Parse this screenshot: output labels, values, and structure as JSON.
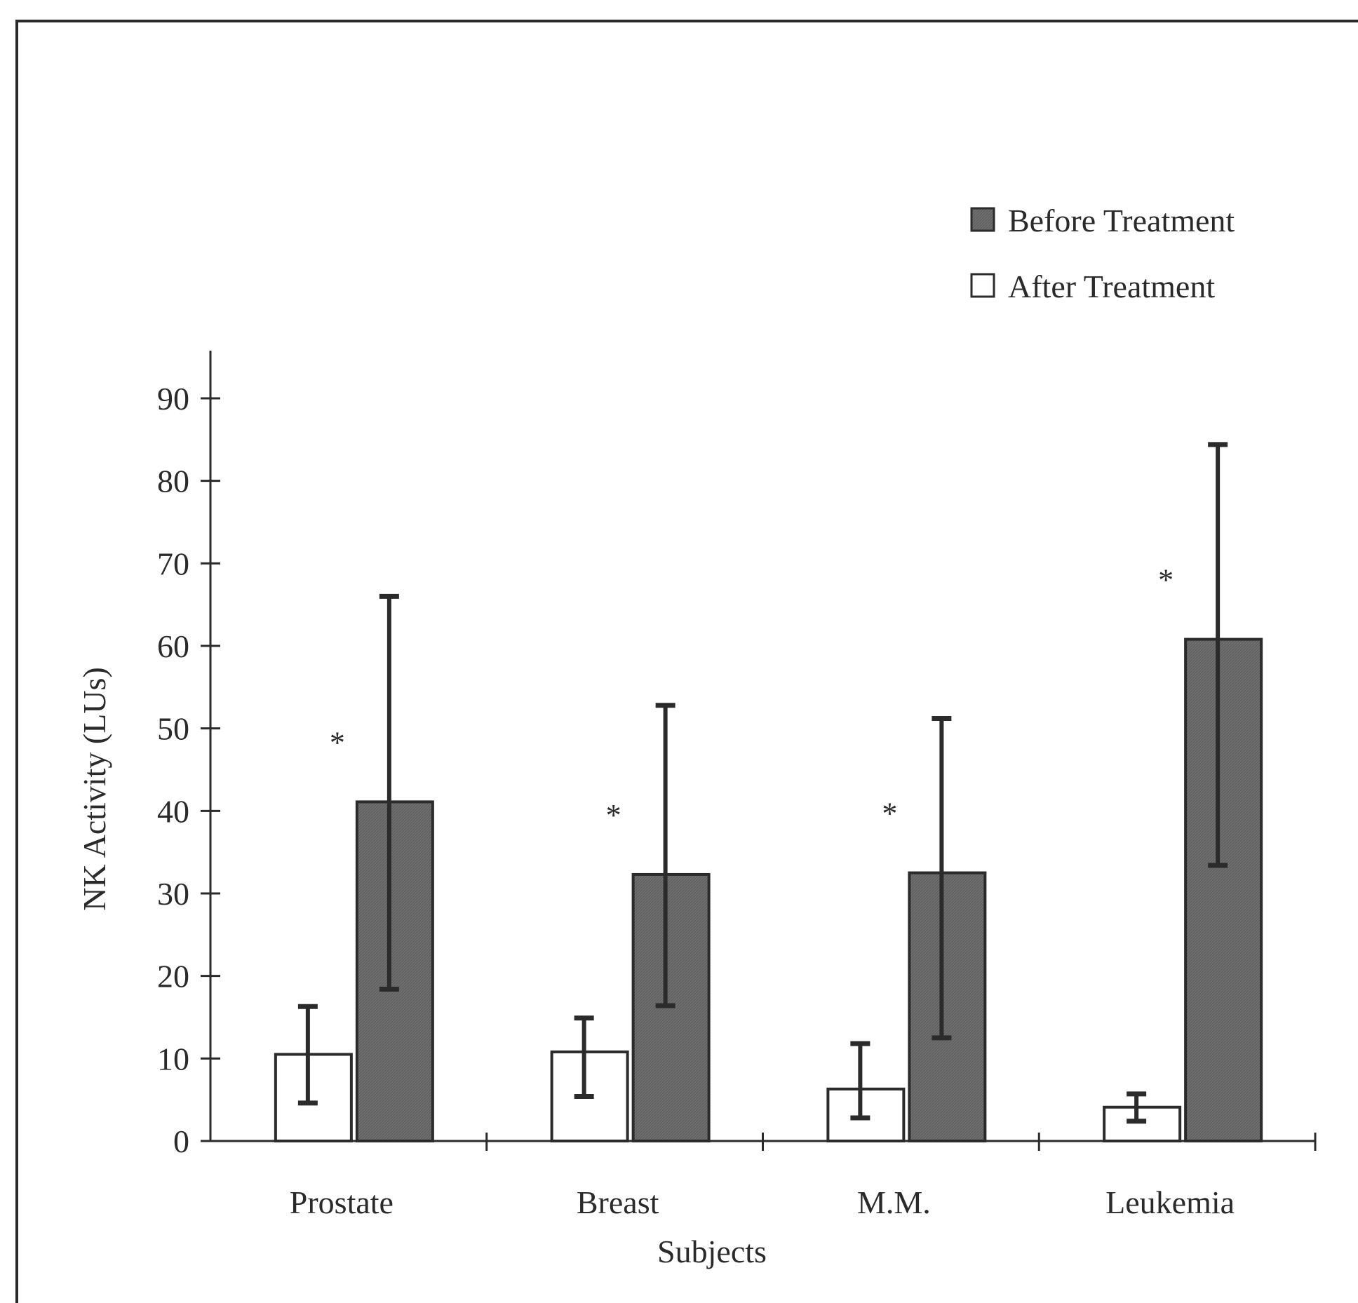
{
  "chart_data": {
    "type": "bar",
    "title": "",
    "xlabel": "Subjects",
    "ylabel": "NK Activity (LUs)",
    "ylim": [
      0,
      90
    ],
    "yticks": [
      "0",
      "10",
      "20",
      "30",
      "40",
      "50",
      "60",
      "70",
      "80",
      "90"
    ],
    "categories": [
      "Prostate",
      "Breast",
      "M.M.",
      "Leukemia"
    ],
    "legend_position": "top-right",
    "grid": false,
    "series": [
      {
        "name": "After Treatment",
        "fill": "#ffffff",
        "values": [
          10.5,
          10.8,
          6.3,
          4.1
        ],
        "error_low": [
          4.6,
          5.4,
          2.8,
          2.4
        ],
        "error_high": [
          16.3,
          14.9,
          11.8,
          5.7
        ]
      },
      {
        "name": "Before Treatment",
        "fill": "#6f6f6f",
        "values": [
          41.1,
          32.3,
          32.5,
          60.8
        ],
        "error_low": [
          18.4,
          16.4,
          12.5,
          33.4
        ],
        "error_high": [
          66.0,
          52.8,
          51.2,
          84.4
        ]
      }
    ],
    "significance_marker": "*"
  },
  "colors": {
    "axis": "#2b2b2b",
    "before_fill": "#6f6f6f",
    "after_fill": "#ffffff"
  }
}
